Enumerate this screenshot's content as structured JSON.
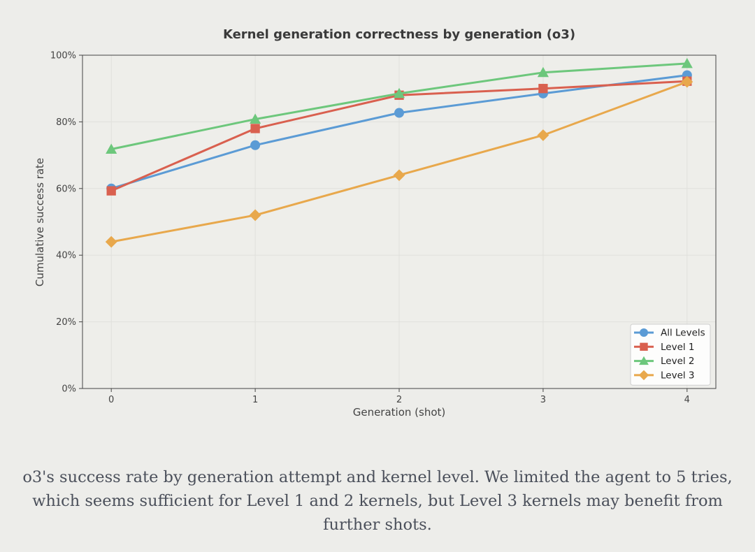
{
  "chart_data": {
    "type": "line",
    "title": "Kernel generation correctness by generation (o3)",
    "xlabel": "Generation (shot)",
    "ylabel": "Cumulative success rate",
    "x": [
      0,
      1,
      2,
      3,
      4
    ],
    "x_tick_labels": [
      "0",
      "1",
      "2",
      "3",
      "4"
    ],
    "ylim": [
      0,
      1
    ],
    "xlim": [
      -0.2,
      4.2
    ],
    "y_ticks": [
      0,
      0.2,
      0.4,
      0.6,
      0.8,
      1.0
    ],
    "y_tick_labels": [
      "0%",
      "20%",
      "40%",
      "60%",
      "80%",
      "100%"
    ],
    "grid": true,
    "legend_position": "bottom-right",
    "series": [
      {
        "name": "All Levels",
        "color": "#5b9bd5",
        "marker": "circle",
        "values": [
          0.6,
          0.73,
          0.827,
          0.885,
          0.94
        ]
      },
      {
        "name": "Level 1",
        "color": "#d9604f",
        "marker": "square",
        "values": [
          0.593,
          0.78,
          0.88,
          0.9,
          0.922
        ]
      },
      {
        "name": "Level 2",
        "color": "#6dc77c",
        "marker": "triangle",
        "values": [
          0.718,
          0.808,
          0.885,
          0.948,
          0.975
        ]
      },
      {
        "name": "Level 3",
        "color": "#e8a84c",
        "marker": "diamond",
        "values": [
          0.44,
          0.52,
          0.64,
          0.76,
          0.92
        ]
      }
    ]
  },
  "caption": "o3's success rate by generation attempt and kernel level. We limited the agent to 5 tries, which seems sufficient for Level 1 and 2 kernels, but Level 3 kernels may benefit from further shots."
}
